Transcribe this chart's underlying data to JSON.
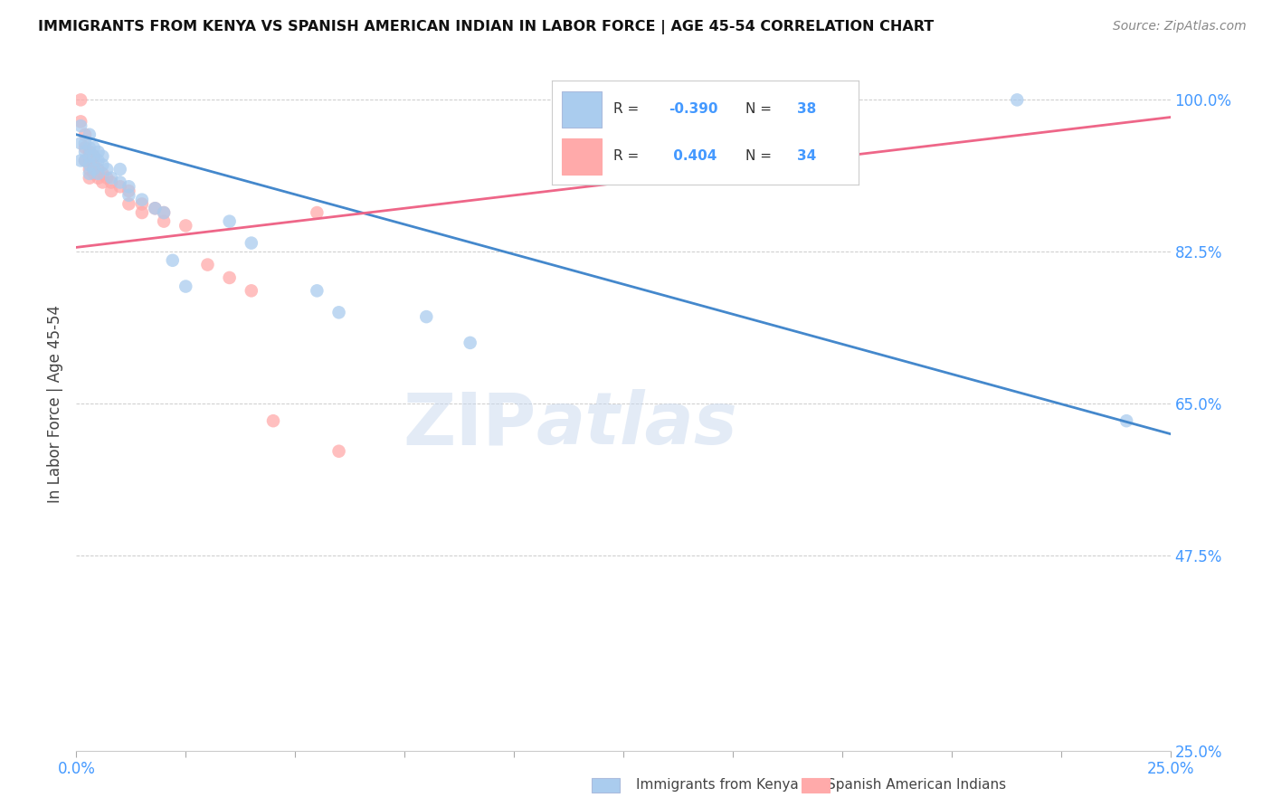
{
  "title": "IMMIGRANTS FROM KENYA VS SPANISH AMERICAN INDIAN IN LABOR FORCE | AGE 45-54 CORRELATION CHART",
  "source": "Source: ZipAtlas.com",
  "ylabel": "In Labor Force | Age 45-54",
  "watermark_left": "ZIP",
  "watermark_right": "atlas",
  "blue_R": -0.39,
  "blue_N": 38,
  "pink_R": 0.404,
  "pink_N": 34,
  "legend_blue": "Immigrants from Kenya",
  "legend_pink": "Spanish American Indians",
  "xlim": [
    0.0,
    0.25
  ],
  "ylim": [
    0.25,
    1.05
  ],
  "xticks": [
    0.0,
    0.025,
    0.05,
    0.075,
    0.1,
    0.125,
    0.15,
    0.175,
    0.2,
    0.225,
    0.25
  ],
  "xtick_labels_show": {
    "0.0": "0.0%",
    "0.25": "25.0%"
  },
  "yticks": [
    0.25,
    0.475,
    0.65,
    0.825,
    1.0
  ],
  "ytick_labels": [
    "25.0%",
    "47.5%",
    "65.0%",
    "82.5%",
    "100.0%"
  ],
  "blue_scatter": [
    [
      0.001,
      0.97
    ],
    [
      0.001,
      0.95
    ],
    [
      0.001,
      0.93
    ],
    [
      0.002,
      0.95
    ],
    [
      0.002,
      0.94
    ],
    [
      0.002,
      0.93
    ],
    [
      0.003,
      0.96
    ],
    [
      0.003,
      0.945
    ],
    [
      0.003,
      0.935
    ],
    [
      0.003,
      0.925
    ],
    [
      0.003,
      0.915
    ],
    [
      0.004,
      0.945
    ],
    [
      0.004,
      0.935
    ],
    [
      0.004,
      0.92
    ],
    [
      0.005,
      0.94
    ],
    [
      0.005,
      0.93
    ],
    [
      0.005,
      0.915
    ],
    [
      0.006,
      0.935
    ],
    [
      0.006,
      0.925
    ],
    [
      0.007,
      0.92
    ],
    [
      0.008,
      0.91
    ],
    [
      0.01,
      0.92
    ],
    [
      0.01,
      0.905
    ],
    [
      0.012,
      0.9
    ],
    [
      0.012,
      0.89
    ],
    [
      0.015,
      0.885
    ],
    [
      0.018,
      0.875
    ],
    [
      0.02,
      0.87
    ],
    [
      0.022,
      0.815
    ],
    [
      0.025,
      0.785
    ],
    [
      0.035,
      0.86
    ],
    [
      0.04,
      0.835
    ],
    [
      0.055,
      0.78
    ],
    [
      0.06,
      0.755
    ],
    [
      0.08,
      0.75
    ],
    [
      0.09,
      0.72
    ],
    [
      0.215,
      1.0
    ],
    [
      0.24,
      0.63
    ]
  ],
  "pink_scatter": [
    [
      0.001,
      1.0
    ],
    [
      0.001,
      0.975
    ],
    [
      0.002,
      0.96
    ],
    [
      0.002,
      0.945
    ],
    [
      0.002,
      0.93
    ],
    [
      0.003,
      0.94
    ],
    [
      0.003,
      0.93
    ],
    [
      0.003,
      0.92
    ],
    [
      0.003,
      0.91
    ],
    [
      0.004,
      0.935
    ],
    [
      0.004,
      0.925
    ],
    [
      0.004,
      0.915
    ],
    [
      0.005,
      0.92
    ],
    [
      0.005,
      0.91
    ],
    [
      0.006,
      0.915
    ],
    [
      0.006,
      0.905
    ],
    [
      0.007,
      0.91
    ],
    [
      0.008,
      0.905
    ],
    [
      0.008,
      0.895
    ],
    [
      0.01,
      0.9
    ],
    [
      0.012,
      0.895
    ],
    [
      0.012,
      0.88
    ],
    [
      0.015,
      0.88
    ],
    [
      0.015,
      0.87
    ],
    [
      0.018,
      0.875
    ],
    [
      0.02,
      0.87
    ],
    [
      0.02,
      0.86
    ],
    [
      0.025,
      0.855
    ],
    [
      0.03,
      0.81
    ],
    [
      0.035,
      0.795
    ],
    [
      0.04,
      0.78
    ],
    [
      0.045,
      0.63
    ],
    [
      0.055,
      0.87
    ],
    [
      0.06,
      0.595
    ]
  ],
  "blue_line_x": [
    0.0,
    0.25
  ],
  "blue_line_y": [
    0.96,
    0.615
  ],
  "pink_line_x": [
    0.0,
    0.25
  ],
  "pink_line_y": [
    0.83,
    0.98
  ],
  "title_color": "#111111",
  "blue_color": "#aaccee",
  "pink_color": "#ffaaaa",
  "blue_line_color": "#4488cc",
  "pink_line_color": "#ee6688",
  "axis_tick_color": "#4499ff",
  "grid_color": "#cccccc",
  "background_color": "#ffffff",
  "ylabel_color": "#444444",
  "source_color": "#888888",
  "legend_text_color": "#333333",
  "legend_value_color": "#4499ff"
}
